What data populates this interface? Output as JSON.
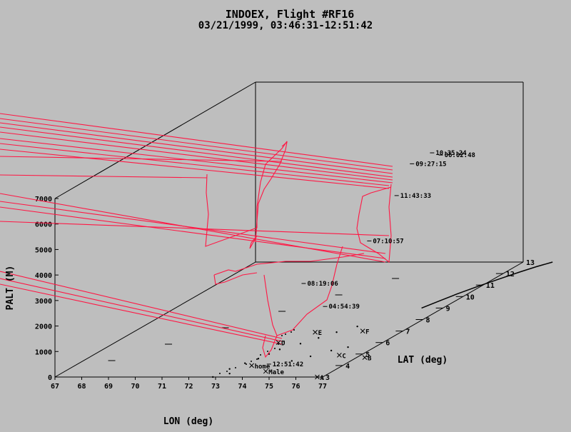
{
  "chart_data": {
    "type": "line",
    "title": "INDOEX, Flight #RF16",
    "subtitle": "03/21/1999, 03:46:31-12:51:42",
    "xlabel": "LON (deg)",
    "ylabel": "LAT (deg)",
    "zlabel": "PALT (M)",
    "xlim": [
      67,
      77
    ],
    "ylim": [
      3,
      13
    ],
    "zlim": [
      0,
      7000
    ],
    "x_ticks": [
      "67",
      "68",
      "69",
      "70",
      "71",
      "72",
      "73",
      "74",
      "75",
      "76",
      "77"
    ],
    "y_ticks": [
      "3",
      "4",
      "5",
      "6",
      "7",
      "8",
      "9",
      "10",
      "11",
      "12",
      "13"
    ],
    "z_ticks": [
      "0",
      "1000",
      "2000",
      "3000",
      "4000",
      "5000",
      "6000",
      "7000"
    ],
    "track_color": "#ff1744",
    "time_labels": [
      {
        "text": "06:02:48",
        "lon": 77.0,
        "lat": 9.0,
        "alt": 6000
      },
      {
        "text": "10:35:24",
        "lon": 75.7,
        "lat": 10.3,
        "alt": 5500
      },
      {
        "text": "09:27:15",
        "lon": 74.5,
        "lat": 10.9,
        "alt": 4800
      },
      {
        "text": "11:43:33",
        "lon": 75.5,
        "lat": 8.8,
        "alt": 4500
      },
      {
        "text": "07:10:57",
        "lon": 77.1,
        "lat": 5.3,
        "alt": 4300
      },
      {
        "text": "08:19:06",
        "lon": 73.6,
        "lat": 6.7,
        "alt": 2000
      },
      {
        "text": "04:54:39",
        "lon": 75.9,
        "lat": 4.7,
        "alt": 2000
      },
      {
        "text": "12:51:42",
        "lon": 74.4,
        "lat": 3.9,
        "alt": 100
      }
    ],
    "waypoints": [
      {
        "name": "F",
        "lon": 75.5,
        "lat": 7.0
      },
      {
        "name": "E",
        "lon": 73.8,
        "lat": 6.9
      },
      {
        "name": "D",
        "lon": 73.1,
        "lat": 6.0
      },
      {
        "name": "C",
        "lon": 76.2,
        "lat": 4.9
      },
      {
        "name": "B",
        "lon": 77.3,
        "lat": 4.7
      },
      {
        "name": "A",
        "lon": 76.8,
        "lat": 3.0
      },
      {
        "name": "home",
        "lon": 73.6,
        "lat": 4.0
      },
      {
        "name": "Male",
        "lon": 74.5,
        "lat": 3.5
      }
    ]
  }
}
